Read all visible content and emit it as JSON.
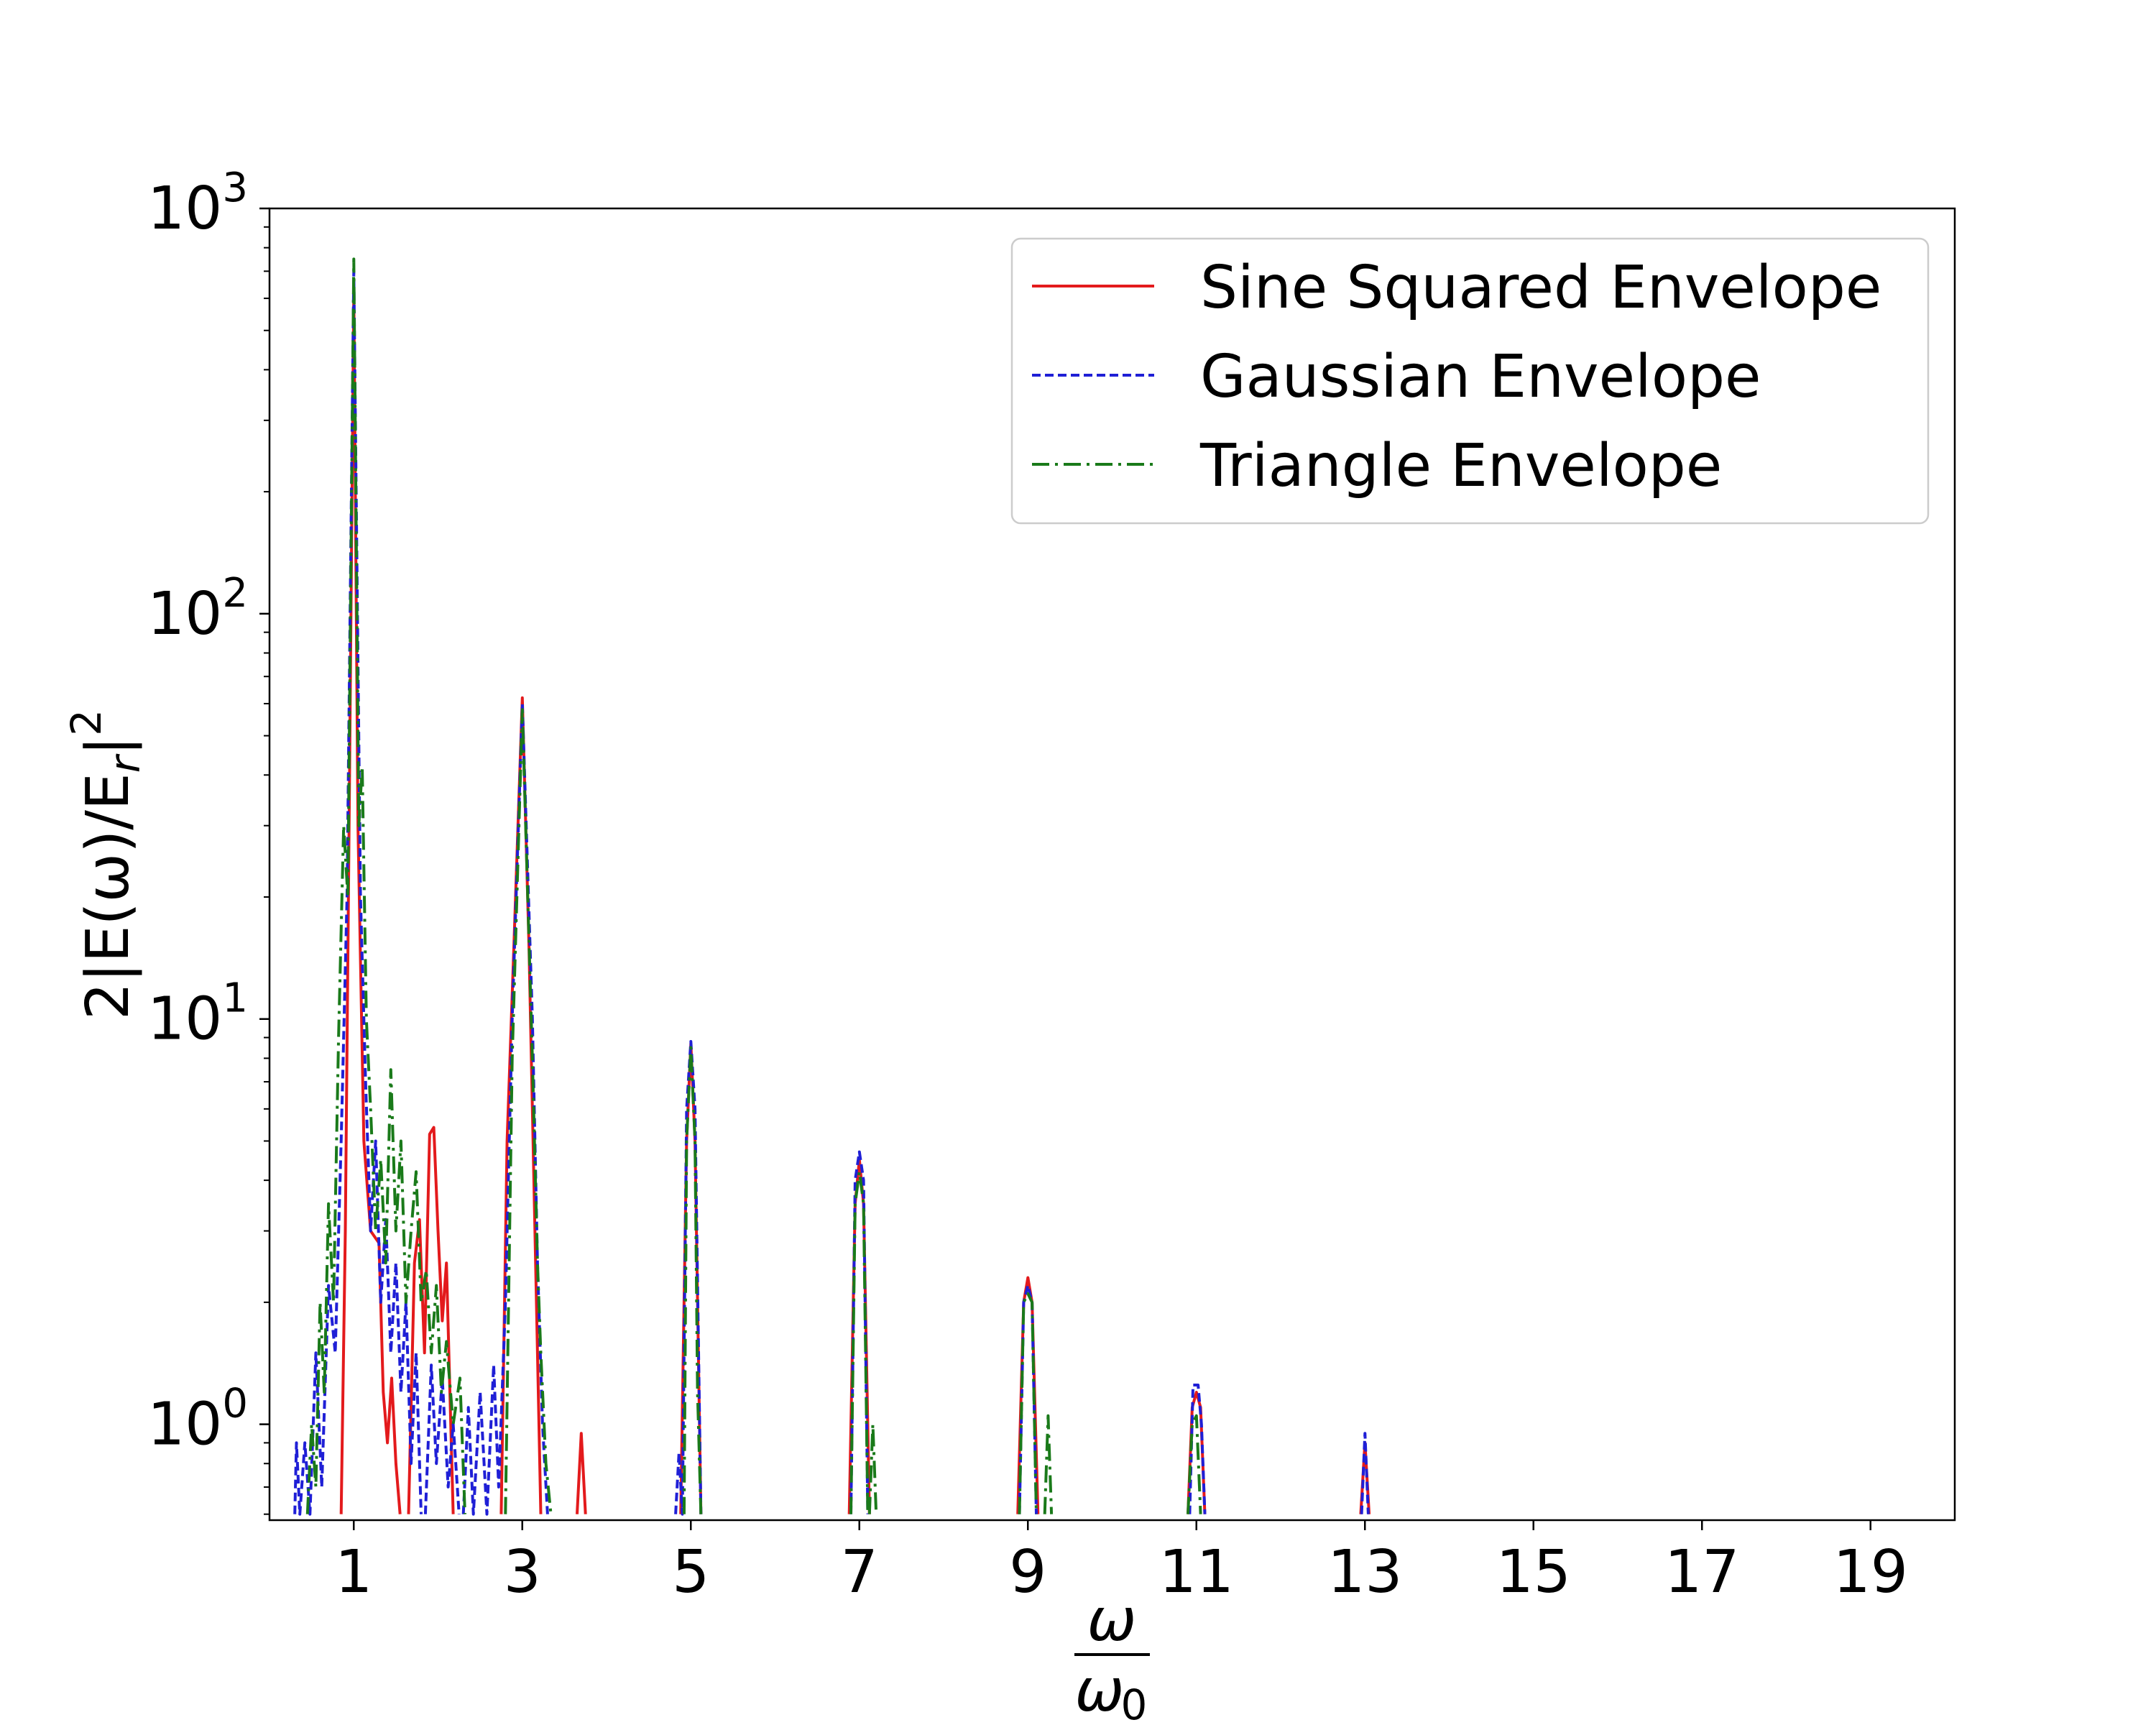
{
  "chart_data": {
    "type": "line",
    "title": "",
    "xlabel": {
      "numerator": "ω",
      "denominator": "ω",
      "denominator_subscript": "0"
    },
    "ylabel": {
      "text": "2|E(ω)/E",
      "subscript": "r",
      "suffix": "|",
      "superscript": "2"
    },
    "x_scale": "linear",
    "y_scale": "log",
    "xlim": [
      0,
      20
    ],
    "ylim": [
      0.58,
      1000
    ],
    "x_ticks": [
      1,
      3,
      5,
      7,
      9,
      11,
      13,
      15,
      17,
      19
    ],
    "x_tick_labels": [
      "1",
      "3",
      "5",
      "7",
      "9",
      "11",
      "13",
      "15",
      "17",
      "19"
    ],
    "y_ticks": [
      1,
      10,
      100,
      1000
    ],
    "y_tick_labels": [
      {
        "base": "10",
        "exp": "0"
      },
      {
        "base": "10",
        "exp": "1"
      },
      {
        "base": "10",
        "exp": "2"
      },
      {
        "base": "10",
        "exp": "3"
      }
    ],
    "grid": false,
    "legend_position": "top-right",
    "series": [
      {
        "name": "Sine Squared Envelope",
        "color": "#e31a1c",
        "style": "solid",
        "segments": [
          [
            [
              0.85,
              0.6
            ],
            [
              0.9,
              3
            ],
            [
              0.95,
              40
            ],
            [
              1.0,
              620
            ],
            [
              1.05,
              30
            ],
            [
              1.12,
              5
            ],
            [
              1.2,
              3
            ],
            [
              1.3,
              2.8
            ],
            [
              1.35,
              1.2
            ],
            [
              1.4,
              0.9
            ],
            [
              1.45,
              1.3
            ],
            [
              1.5,
              0.8
            ],
            [
              1.55,
              0.6
            ]
          ],
          [
            [
              1.65,
              0.6
            ],
            [
              1.72,
              2.5
            ],
            [
              1.78,
              3.2
            ],
            [
              1.84,
              1.5
            ],
            [
              1.9,
              5.2
            ],
            [
              1.95,
              5.4
            ],
            [
              2.0,
              3
            ],
            [
              2.05,
              1.8
            ],
            [
              2.1,
              2.5
            ],
            [
              2.18,
              0.6
            ]
          ],
          [
            [
              2.75,
              0.6
            ],
            [
              2.82,
              5
            ],
            [
              2.9,
              15
            ],
            [
              3.0,
              62
            ],
            [
              3.08,
              15
            ],
            [
              3.18,
              1.5
            ],
            [
              3.22,
              0.6
            ]
          ],
          [
            [
              3.65,
              0.6
            ],
            [
              3.7,
              0.95
            ],
            [
              3.75,
              0.6
            ]
          ],
          [
            [
              4.88,
              0.6
            ],
            [
              4.95,
              5
            ],
            [
              5.0,
              8.7
            ],
            [
              5.05,
              5
            ],
            [
              5.12,
              0.6
            ]
          ],
          [
            [
              6.88,
              0.6
            ],
            [
              6.95,
              3.5
            ],
            [
              7.0,
              4.5
            ],
            [
              7.05,
              3.5
            ],
            [
              7.12,
              0.6
            ]
          ],
          [
            [
              8.88,
              0.6
            ],
            [
              8.95,
              2
            ],
            [
              9.0,
              2.3
            ],
            [
              9.05,
              2
            ],
            [
              9.12,
              0.6
            ]
          ],
          [
            [
              10.9,
              0.6
            ],
            [
              10.95,
              1.1
            ],
            [
              11.0,
              1.2
            ],
            [
              11.05,
              1.1
            ],
            [
              11.1,
              0.6
            ]
          ],
          [
            [
              12.95,
              0.6
            ],
            [
              13.0,
              0.9
            ],
            [
              13.05,
              0.6
            ]
          ]
        ]
      },
      {
        "name": "Gaussian Envelope",
        "color": "#1f1fd6",
        "style": "dashed",
        "segments": [
          [
            [
              0.3,
              0.6
            ],
            [
              0.32,
              0.9
            ],
            [
              0.36,
              0.6
            ],
            [
              0.42,
              0.9
            ],
            [
              0.48,
              0.6
            ],
            [
              0.55,
              1.5
            ],
            [
              0.62,
              0.7
            ],
            [
              0.7,
              2.2
            ],
            [
              0.78,
              1.5
            ],
            [
              0.85,
              5
            ],
            [
              0.92,
              20
            ],
            [
              1.0,
              700
            ],
            [
              1.08,
              20
            ],
            [
              1.14,
              7
            ],
            [
              1.2,
              3
            ],
            [
              1.26,
              5
            ],
            [
              1.32,
              2
            ],
            [
              1.38,
              3.2
            ],
            [
              1.44,
              1.5
            ],
            [
              1.5,
              2.5
            ],
            [
              1.56,
              1.2
            ],
            [
              1.62,
              2
            ],
            [
              1.68,
              0.8
            ],
            [
              1.74,
              1.5
            ],
            [
              1.8,
              0.6
            ]
          ],
          [
            [
              1.85,
              0.6
            ],
            [
              1.92,
              1.4
            ],
            [
              1.98,
              0.8
            ],
            [
              2.05,
              1.3
            ],
            [
              2.12,
              0.7
            ],
            [
              2.18,
              1.0
            ],
            [
              2.25,
              0.6
            ]
          ],
          [
            [
              2.3,
              0.6
            ],
            [
              2.36,
              1.1
            ],
            [
              2.42,
              0.6
            ],
            [
              2.5,
              1.2
            ],
            [
              2.58,
              0.6
            ],
            [
              2.66,
              1.4
            ],
            [
              2.72,
              0.7
            ],
            [
              2.8,
              2
            ],
            [
              2.88,
              10
            ],
            [
              3.0,
              60
            ],
            [
              3.12,
              10
            ],
            [
              3.18,
              2.5
            ],
            [
              3.24,
              1.0
            ],
            [
              3.3,
              0.6
            ]
          ],
          [
            [
              4.82,
              0.6
            ],
            [
              4.86,
              0.85
            ],
            [
              4.9,
              0.6
            ],
            [
              4.95,
              6
            ],
            [
              5.0,
              8.8
            ],
            [
              5.05,
              6
            ],
            [
              5.12,
              0.6
            ]
          ],
          [
            [
              6.9,
              0.6
            ],
            [
              6.95,
              4
            ],
            [
              7.0,
              4.7
            ],
            [
              7.05,
              4
            ],
            [
              7.1,
              0.6
            ]
          ],
          [
            [
              8.9,
              0.6
            ],
            [
              8.95,
              2
            ],
            [
              9.0,
              2.2
            ],
            [
              9.05,
              2
            ],
            [
              9.1,
              0.6
            ]
          ],
          [
            [
              10.92,
              0.6
            ],
            [
              10.96,
              1.25
            ],
            [
              11.02,
              1.25
            ],
            [
              11.06,
              1.0
            ],
            [
              11.1,
              0.6
            ]
          ],
          [
            [
              12.96,
              0.6
            ],
            [
              13.0,
              0.95
            ],
            [
              13.04,
              0.6
            ]
          ]
        ]
      },
      {
        "name": "Triangle Envelope",
        "color": "#1a7a1a",
        "style": "dashdot",
        "segments": [
          [
            [
              0.45,
              0.6
            ],
            [
              0.5,
              1.0
            ],
            [
              0.55,
              0.7
            ],
            [
              0.6,
              2.0
            ],
            [
              0.65,
              1.2
            ],
            [
              0.7,
              3.5
            ],
            [
              0.76,
              2
            ],
            [
              0.82,
              9
            ],
            [
              0.88,
              30
            ],
            [
              0.93,
              20
            ],
            [
              1.0,
              750
            ],
            [
              1.06,
              30
            ],
            [
              1.1,
              42
            ],
            [
              1.15,
              10
            ],
            [
              1.2,
              6
            ],
            [
              1.26,
              3
            ],
            [
              1.32,
              4.5
            ],
            [
              1.38,
              2.5
            ],
            [
              1.44,
              7.5
            ],
            [
              1.5,
              3
            ],
            [
              1.56,
              5
            ],
            [
              1.62,
              2
            ],
            [
              1.68,
              3
            ],
            [
              1.74,
              4.2
            ],
            [
              1.8,
              2
            ],
            [
              1.86,
              2.4
            ],
            [
              1.92,
              1.5
            ],
            [
              1.98,
              2.2
            ],
            [
              2.04,
              1.2
            ],
            [
              2.1,
              1.6
            ],
            [
              2.18,
              1.0
            ],
            [
              2.26,
              1.3
            ],
            [
              2.32,
              0.6
            ]
          ],
          [
            [
              2.8,
              0.6
            ],
            [
              2.88,
              8
            ],
            [
              3.0,
              58
            ],
            [
              3.12,
              8
            ],
            [
              3.18,
              2.5
            ],
            [
              3.22,
              1.5
            ],
            [
              3.28,
              0.8
            ],
            [
              3.34,
              0.6
            ]
          ],
          [
            [
              4.92,
              0.6
            ],
            [
              4.95,
              5
            ],
            [
              5.0,
              8.5
            ],
            [
              5.05,
              5
            ],
            [
              5.08,
              1.2
            ],
            [
              5.12,
              0.6
            ]
          ],
          [
            [
              6.9,
              0.6
            ],
            [
              6.95,
              3.5
            ],
            [
              7.0,
              4.2
            ],
            [
              7.05,
              3.5
            ],
            [
              7.1,
              0.6
            ]
          ],
          [
            [
              7.12,
              0.6
            ],
            [
              7.16,
              1.0
            ],
            [
              7.2,
              0.6
            ]
          ],
          [
            [
              8.9,
              0.6
            ],
            [
              8.95,
              2
            ],
            [
              9.0,
              2.1
            ],
            [
              9.05,
              2
            ],
            [
              9.1,
              0.6
            ]
          ],
          [
            [
              9.2,
              0.6
            ],
            [
              9.24,
              1.05
            ],
            [
              9.28,
              0.6
            ]
          ],
          [
            [
              10.9,
              0.6
            ],
            [
              10.95,
              1.0
            ],
            [
              11.0,
              1.05
            ],
            [
              11.05,
              0.6
            ]
          ]
        ]
      }
    ]
  }
}
